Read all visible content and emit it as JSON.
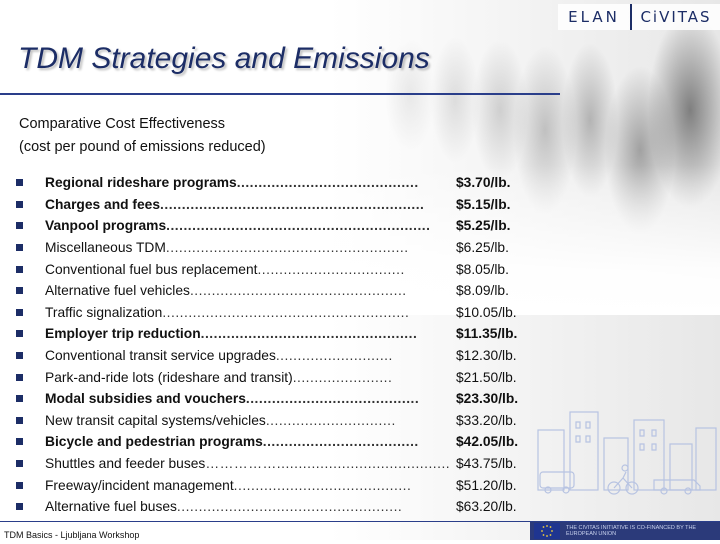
{
  "header": {
    "logo_left": "ELAN",
    "logo_right": "CiVITAS"
  },
  "slide": {
    "title": "TDM Strategies and Emissions",
    "subtitle": "Comparative Cost Effectiveness",
    "subtitle2": "(cost per pound of emissions reduced)",
    "items": [
      {
        "label": "Regional rideshare programs",
        "dots": "..........................................",
        "value": "$3.70/lb.",
        "bold": true
      },
      {
        "label": "Charges and fees",
        "dots": ".............................................................",
        "value": "$5.15/lb.",
        "bold": true
      },
      {
        "label": "Vanpool programs",
        "dots": ".............................................................",
        "value": "$5.25/lb.",
        "bold": true
      },
      {
        "label": "Miscellaneous TDM",
        "dots": "........................................................",
        "value": "$6.25/lb.",
        "bold": false
      },
      {
        "label": "Conventional fuel bus replacement",
        "dots": "..................................",
        "value": "$8.05/lb.",
        "bold": false
      },
      {
        "label": "Alternative fuel vehicles",
        "dots": "..................................................",
        "value": "$8.09/lb.",
        "bold": false
      },
      {
        "label": "Traffic signalization",
        "dots": ".........................................................",
        "value": "$10.05/lb.",
        "bold": false
      },
      {
        "label": "Employer trip reduction",
        "dots": "..................................................",
        "value": "$11.35/lb.",
        "bold": true
      },
      {
        "label": "Conventional transit service upgrades",
        "dots": "...........................",
        "value": "$12.30/lb.",
        "bold": false
      },
      {
        "label": "Park-and-ride lots (rideshare and transit)",
        "dots": ".......................",
        "value": "$21.50/lb.",
        "bold": false
      },
      {
        "label": "Modal subsidies and vouchers",
        "dots": "........................................",
        "value": "$23.30/lb.",
        "bold": true
      },
      {
        "label": "New transit capital systems/vehicles",
        "dots": "..............................",
        "value": "$33.20/lb.",
        "bold": false
      },
      {
        "label": "Bicycle and pedestrian programs",
        "dots": "....................................",
        "value": "$42.05/lb.",
        "bold": true
      },
      {
        "label": "Shuttles and feeder buses",
        "dots": "……………..........................................",
        "value": "$43.75/lb.",
        "bold": false
      },
      {
        "label": "Freeway/incident management",
        "dots": ".........................................",
        "value": "$51.20/lb.",
        "bold": false
      },
      {
        "label": "Alternative fuel buses",
        "dots": "....................................................",
        "value": "$63.20/lb.",
        "bold": false
      }
    ]
  },
  "footer": {
    "left_text": "TDM Basics - Ljubljana Workshop",
    "right_text": "THE CIVITAS INITIATIVE IS CO-FINANCED BY THE EUROPEAN UNION"
  },
  "colors": {
    "brand_navy": "#1c2d66",
    "rule_blue": "#2a3e8a"
  }
}
